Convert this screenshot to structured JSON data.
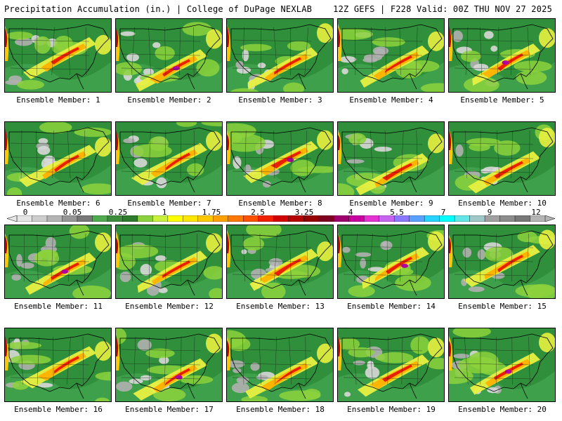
{
  "header": {
    "left_title": "Precipitation Accumulation (in.) | College of DuPage NEXLAB",
    "right_title": "12Z GEFS | F228 Valid: 00Z THU NOV 27 2025"
  },
  "panels": [
    {
      "label": "Ensemble Member: 1"
    },
    {
      "label": "Ensemble Member: 2"
    },
    {
      "label": "Ensemble Member: 3"
    },
    {
      "label": "Ensemble Member: 4"
    },
    {
      "label": "Ensemble Member: 5"
    },
    {
      "label": "Ensemble Member: 6"
    },
    {
      "label": "Ensemble Member: 7"
    },
    {
      "label": "Ensemble Member: 8"
    },
    {
      "label": "Ensemble Member: 9"
    },
    {
      "label": "Ensemble Member: 10"
    },
    {
      "label": "Ensemble Member: 11"
    },
    {
      "label": "Ensemble Member: 12"
    },
    {
      "label": "Ensemble Member: 13"
    },
    {
      "label": "Ensemble Member: 14"
    },
    {
      "label": "Ensemble Member: 15"
    },
    {
      "label": "Ensemble Member: 16"
    },
    {
      "label": "Ensemble Member: 17"
    },
    {
      "label": "Ensemble Member: 18"
    },
    {
      "label": "Ensemble Member: 19"
    },
    {
      "label": "Ensemble Member: 20"
    }
  ],
  "legend": {
    "tick_labels": [
      "0",
      "0.05",
      "0.25",
      "1",
      "1.75",
      "2.5",
      "3.25",
      "4",
      "5.5",
      "7",
      "9",
      "12"
    ],
    "colors": [
      "#e6e6e6",
      "#cdcdcd",
      "#b4b4b4",
      "#969696",
      "#787878",
      "#50aa50",
      "#3c8c3c",
      "#2e7b2e",
      "#8cd23c",
      "#c8f03c",
      "#ffff00",
      "#ffe600",
      "#ffc800",
      "#ffa000",
      "#ff7800",
      "#ff5000",
      "#f02000",
      "#d20000",
      "#b40000",
      "#960000",
      "#800020",
      "#a0006e",
      "#c800a0",
      "#e632d2",
      "#c864f0",
      "#8c78ff",
      "#5aa0ff",
      "#28d2ff",
      "#00ffff",
      "#64e6e6",
      "#a0c8c8",
      "#a0a0a0",
      "#8c8c8c",
      "#787878",
      "#b4b4b4"
    ]
  }
}
